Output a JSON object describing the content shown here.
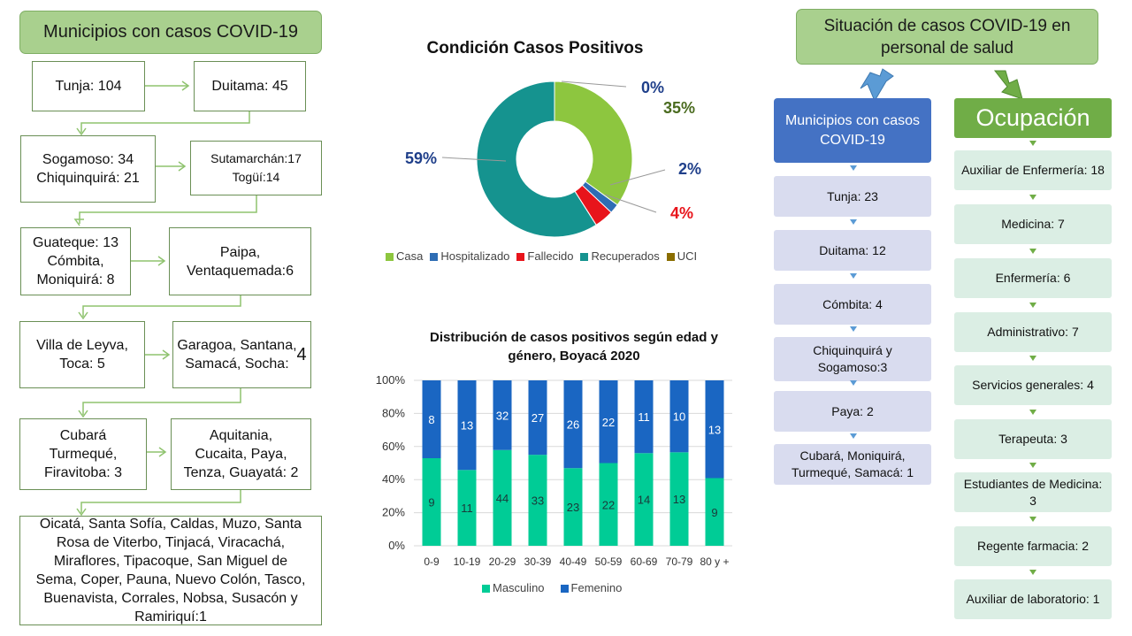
{
  "left": {
    "title": "Municipios con casos COVID-19",
    "rows": [
      {
        "a": "Tunja: 104",
        "b": "Duitama: 45"
      },
      {
        "a": "Sogamoso: 34\nChiquinquirá: 21",
        "b": "Sutamarchán:17\nTogüí:14"
      },
      {
        "a": "Guateque: 13\nCómbita,\nMoniquirá: 8",
        "b": "Paipa,\nVentaquemada:6"
      },
      {
        "a": "Villa de Leyva,\nToca: 5",
        "b": "Garagoa, Santana,\nSamacá, Socha: ",
        "b_big": "4"
      },
      {
        "a": "Cubará\nTurmequé,\nFiravitoba: 3",
        "b": "Aquitania,\nCucaita, Paya,\nTenza, Guayatá: 2"
      }
    ],
    "last": "Oicatá, Santa Sofía, Caldas, Muzo, Santa Rosa de Viterbo, Tinjacá, Viracachá, Miraflores, Tipacoque, San Miguel de Sema, Coper, Pauna, Nuevo Colón, Tasco, Buenavista, Corrales, Nobsa, Susacón y Ramiriquí:1"
  },
  "chart_data": [
    {
      "type": "pie",
      "title": "Condición Casos Positivos",
      "categories": [
        "Casa",
        "Hospitalizado",
        "Fallecido",
        "Recuperados",
        "UCI"
      ],
      "values": [
        35,
        2,
        4,
        59,
        0
      ],
      "labels": [
        "35%",
        "2%",
        "4%",
        "59%",
        "0%"
      ],
      "colors": [
        "#8dc63f",
        "#2e6db4",
        "#e8141b",
        "#15938f",
        "#8a6d00"
      ],
      "legend": "bottom"
    },
    {
      "type": "bar",
      "stacked": "percent",
      "title": "Distribución de casos positivos según edad y género, Boyacá 2020",
      "categories": [
        "0-9",
        "10-19",
        "20-29",
        "30-39",
        "40-49",
        "50-59",
        "60-69",
        "70-79",
        "80 y +"
      ],
      "series": [
        {
          "name": "Masculino",
          "values": [
            9,
            11,
            44,
            33,
            23,
            22,
            14,
            13,
            9
          ],
          "color": "#00cc96"
        },
        {
          "name": "Femenino",
          "values": [
            8,
            13,
            32,
            27,
            26,
            22,
            11,
            10,
            13
          ],
          "color": "#1a66c2"
        }
      ],
      "yticks": [
        "0%",
        "20%",
        "40%",
        "60%",
        "80%",
        "100%"
      ],
      "ylim": [
        0,
        100
      ],
      "legend": "bottom"
    }
  ],
  "right": {
    "title": "Situación de casos COVID-19 en personal de salud",
    "municipios": {
      "header": "Municipios con casos COVID-19",
      "items": [
        "Tunja: 23",
        "Duitama: 12",
        "Cómbita: 4",
        "Chiquinquirá y Sogamoso:3",
        "Paya: 2",
        "Cubará, Moniquirá, Turmequé, Samacá: 1"
      ]
    },
    "ocupacion": {
      "header": "Ocupación",
      "items": [
        "Auxiliar de Enfermería: 18",
        "Medicina: 7",
        "Enfermería: 6",
        "Administrativo:  7",
        "Servicios generales: 4",
        "Terapeuta: 3",
        "Estudiantes de Medicina: 3",
        "Regente farmacia: 2",
        "Auxiliar de laboratorio: 1"
      ]
    },
    "colors": {
      "blue_header": "#4472c4",
      "green_header": "#70ad47",
      "arrow_blue": "#5b9bd5",
      "arrow_green": "#70ad47"
    }
  }
}
